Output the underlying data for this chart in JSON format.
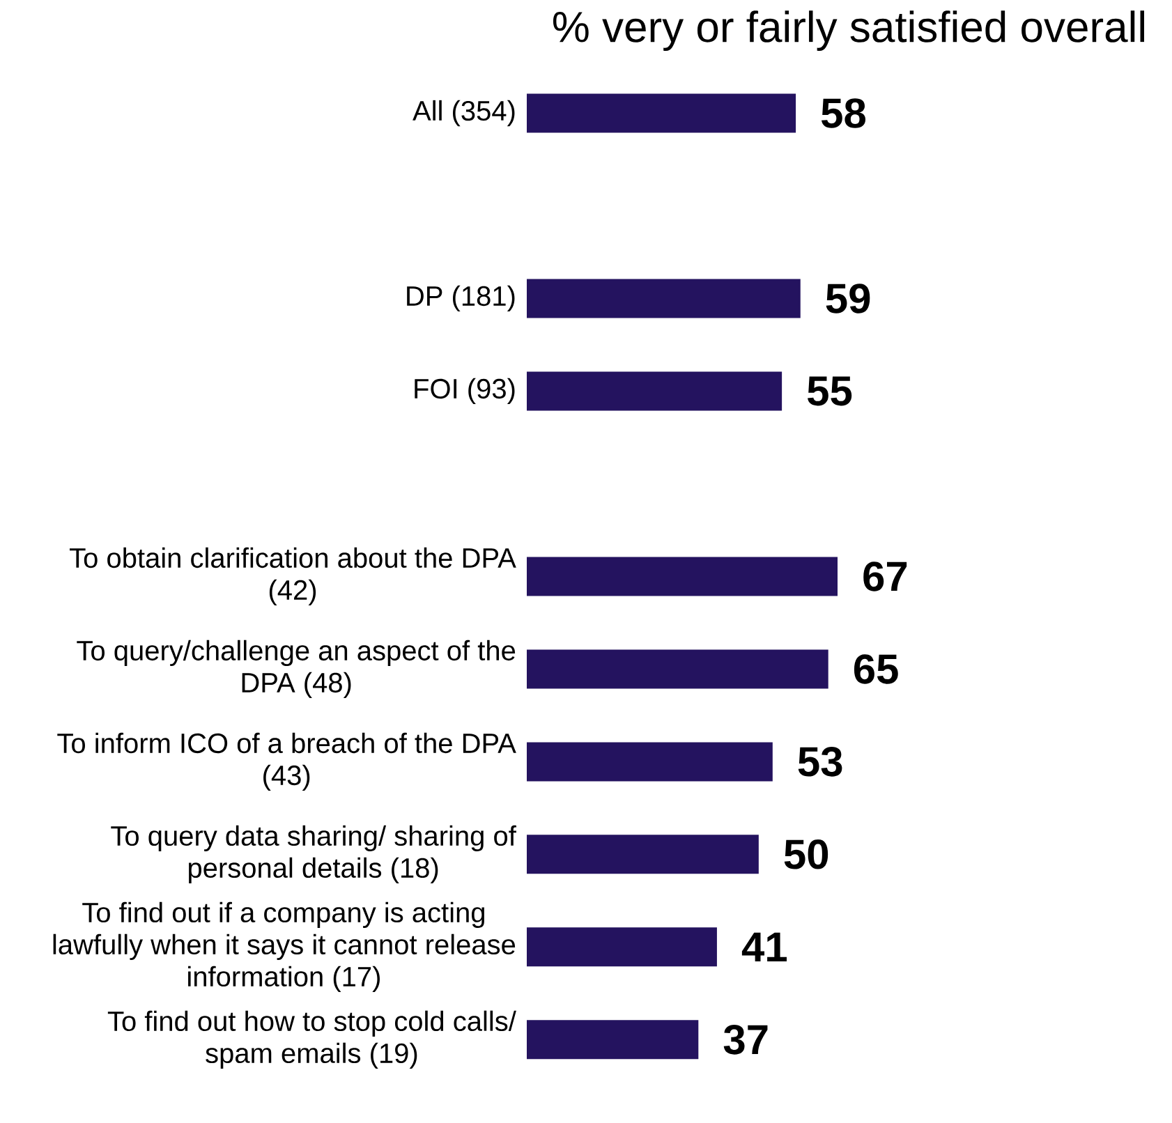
{
  "chart_data": {
    "type": "bar",
    "orientation": "horizontal",
    "title": "% very or fairly satisfied overall",
    "categories": [
      "All (354)",
      null,
      "DP (181)",
      "FOI (93)",
      null,
      "To obtain clarification about the DPA (42)",
      "To query/challenge an aspect of the DPA (48)",
      "To inform ICO of a breach of the DPA (43)",
      "To query data sharing/ sharing of personal details (18)",
      "To find out if a company is acting lawfully when it says it cannot release information (17)",
      "To find out how to stop cold calls/ spam emails (19)"
    ],
    "values": [
      58,
      null,
      59,
      55,
      null,
      67,
      65,
      53,
      50,
      41,
      37
    ],
    "color": "#24135f",
    "data_labels": true,
    "tick_labels": "y"
  }
}
